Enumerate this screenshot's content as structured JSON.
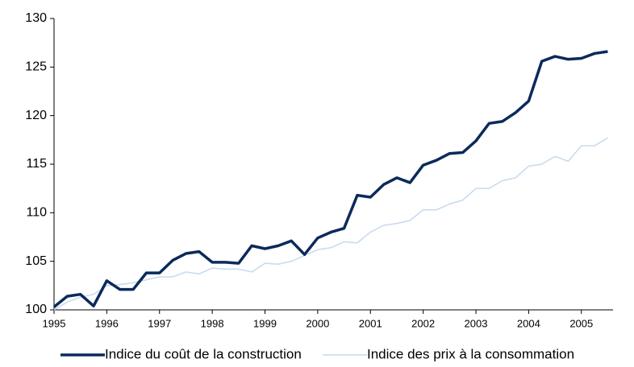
{
  "chart_data": {
    "type": "line",
    "x": [
      1995,
      1995.25,
      1995.5,
      1995.75,
      1996,
      1996.25,
      1996.5,
      1996.75,
      1997,
      1997.25,
      1997.5,
      1997.75,
      1998,
      1998.25,
      1998.5,
      1998.75,
      1999,
      1999.25,
      1999.5,
      1999.75,
      2000,
      2000.25,
      2000.5,
      2000.75,
      2001,
      2001.25,
      2001.5,
      2001.75,
      2002,
      2002.25,
      2002.5,
      2002.75,
      2003,
      2003.25,
      2003.5,
      2003.75,
      2004,
      2004.25,
      2004.5,
      2004.75,
      2005,
      2005.25,
      2005.5
    ],
    "series": [
      {
        "name": "Indice du coût de la construction",
        "color": "#0b2a5c",
        "width": 3.5,
        "values": [
          100.3,
          101.4,
          101.6,
          100.4,
          103.0,
          102.1,
          102.1,
          103.8,
          103.8,
          105.1,
          105.8,
          106.0,
          104.9,
          104.9,
          104.8,
          106.6,
          106.3,
          106.6,
          107.1,
          105.7,
          107.4,
          108.0,
          108.4,
          111.8,
          111.6,
          112.9,
          113.6,
          113.1,
          114.9,
          115.4,
          116.1,
          116.2,
          117.4,
          119.2,
          119.4,
          120.3,
          121.5,
          125.6,
          126.1,
          125.8,
          125.9,
          126.4,
          126.6
        ]
      },
      {
        "name": "Indice des prix à la consommation",
        "color": "#c6d9ef",
        "width": 1.5,
        "values": [
          100.0,
          100.8,
          101.3,
          101.6,
          102.5,
          102.6,
          102.8,
          103.1,
          103.4,
          103.4,
          103.9,
          103.7,
          104.3,
          104.2,
          104.2,
          103.9,
          104.8,
          104.7,
          105.0,
          105.6,
          106.2,
          106.4,
          107.0,
          106.9,
          108.0,
          108.7,
          108.9,
          109.2,
          110.3,
          110.3,
          110.9,
          111.3,
          112.5,
          112.5,
          113.3,
          113.6,
          114.8,
          115.0,
          115.8,
          115.3,
          116.9,
          116.9,
          117.7
        ]
      }
    ],
    "xlim": [
      1995,
      2005.6
    ],
    "xticks": [
      1995,
      1996,
      1997,
      1998,
      1999,
      2000,
      2001,
      2002,
      2003,
      2004,
      2005
    ],
    "ylim": [
      100,
      130
    ],
    "yticks": [
      100,
      105,
      110,
      115,
      120,
      125,
      130
    ],
    "grid": false,
    "legend": "bottom"
  }
}
